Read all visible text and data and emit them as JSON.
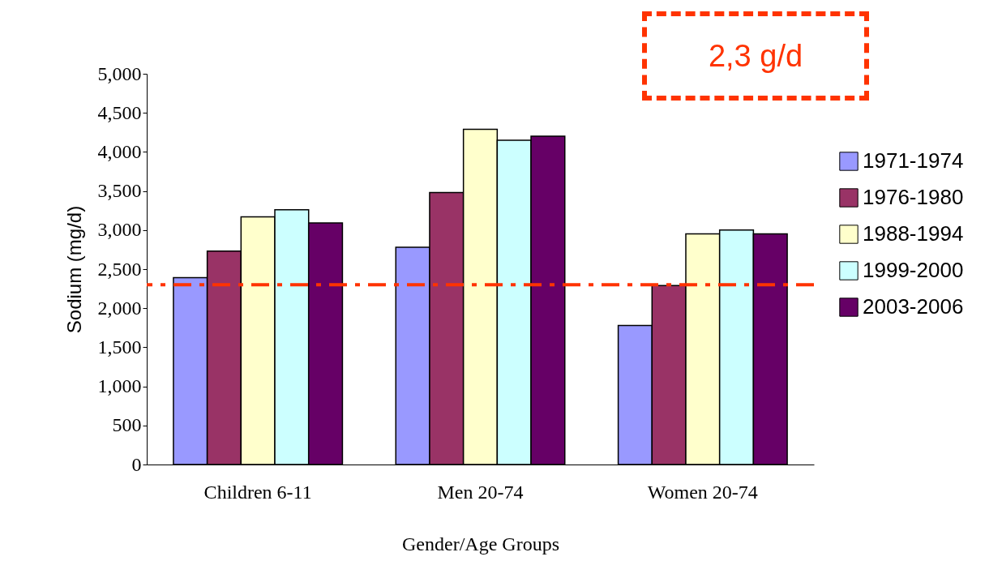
{
  "chart_data": {
    "type": "bar",
    "xlabel": "Gender/Age Groups",
    "ylabel": "Sodium (mg/d)",
    "categories": [
      "Children 6-11",
      "Men 20-74",
      "Women 20-74"
    ],
    "series": [
      {
        "name": "1971-1974",
        "color": "#9999ff",
        "values": [
          2390,
          2780,
          1780
        ]
      },
      {
        "name": "1976-1980",
        "color": "#993366",
        "values": [
          2730,
          3480,
          2290
        ]
      },
      {
        "name": "1988-1994",
        "color": "#ffffcc",
        "values": [
          3170,
          4290,
          2950
        ]
      },
      {
        "name": "1999-2000",
        "color": "#ccffff",
        "values": [
          3260,
          4150,
          3000
        ]
      },
      {
        "name": "2003-2006",
        "color": "#660066",
        "values": [
          3090,
          4200,
          2950
        ]
      }
    ],
    "ylim": [
      0,
      5000
    ],
    "yticks": [
      0,
      500,
      {
        "value": 1000,
        "label": "1,000"
      },
      {
        "value": 1500,
        "label": "1,500"
      },
      {
        "value": 2000,
        "label": "2,000"
      },
      {
        "value": 2500,
        "label": "2,500"
      },
      {
        "value": 3000,
        "label": "3,000"
      },
      {
        "value": 3500,
        "label": "3,500"
      },
      {
        "value": 4000,
        "label": "4,000"
      },
      {
        "value": 4500,
        "label": "4,500"
      },
      {
        "value": 5000,
        "label": "5,000"
      }
    ],
    "grid": false,
    "legend": "right",
    "ref_lines": [
      {
        "axis": "y",
        "value": 2300,
        "label": "2,3 g/d",
        "color": "#ff3300",
        "line_style": "dashed"
      }
    ]
  }
}
